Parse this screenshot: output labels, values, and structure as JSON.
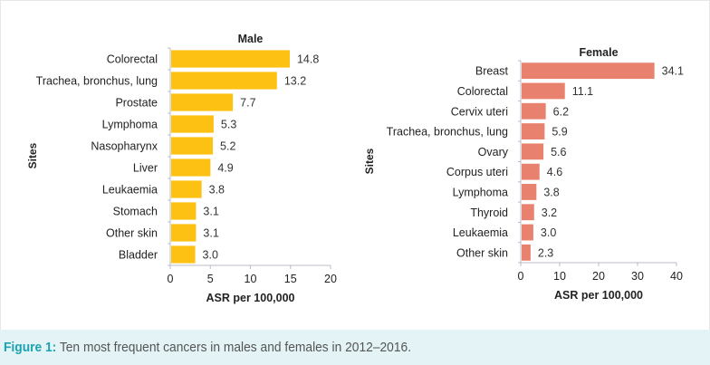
{
  "caption": {
    "label": "Figure 1:",
    "text": " Ten most frequent cancers in males and females in 2012–2016."
  },
  "chart_data": [
    {
      "type": "bar",
      "orientation": "horizontal",
      "title": "Male",
      "xlabel": "ASR per 100,000",
      "ylabel": "Sites",
      "xlim": [
        0,
        20
      ],
      "xticks": [
        0,
        5,
        10,
        15,
        20
      ],
      "color": "#FDC113",
      "categories": [
        "Colorectal",
        "Trachea, bronchus, lung",
        "Prostate",
        "Lymphoma",
        "Nasopharynx",
        "Liver",
        "Leukaemia",
        "Stomach",
        "Other skin",
        "Bladder"
      ],
      "values": [
        14.8,
        13.2,
        7.7,
        5.3,
        5.2,
        4.9,
        3.8,
        3.1,
        3.1,
        3.0
      ],
      "value_labels": [
        "14.8",
        "13.2",
        "7.7",
        "5.3",
        "5.2",
        "4.9",
        "3.8",
        "3.1",
        "3.1",
        "3.0"
      ]
    },
    {
      "type": "bar",
      "orientation": "horizontal",
      "title": "Female",
      "xlabel": "ASR per 100,000",
      "ylabel": "Sites",
      "xlim": [
        0,
        40
      ],
      "xticks": [
        0,
        10,
        20,
        30,
        40
      ],
      "color": "#E8826E",
      "categories": [
        "Breast",
        "Colorectal",
        "Cervix uteri",
        "Trachea, bronchus, lung",
        "Ovary",
        "Corpus uteri",
        "Lymphoma",
        "Thyroid",
        "Leukaemia",
        "Other skin"
      ],
      "values": [
        34.1,
        11.1,
        6.2,
        5.9,
        5.6,
        4.6,
        3.8,
        3.2,
        3.0,
        2.3
      ],
      "value_labels": [
        "34.1",
        "11.1",
        "6.2",
        "5.9",
        "5.6",
        "4.6",
        "3.8",
        "3.2",
        "3.0",
        "2.3"
      ]
    }
  ]
}
